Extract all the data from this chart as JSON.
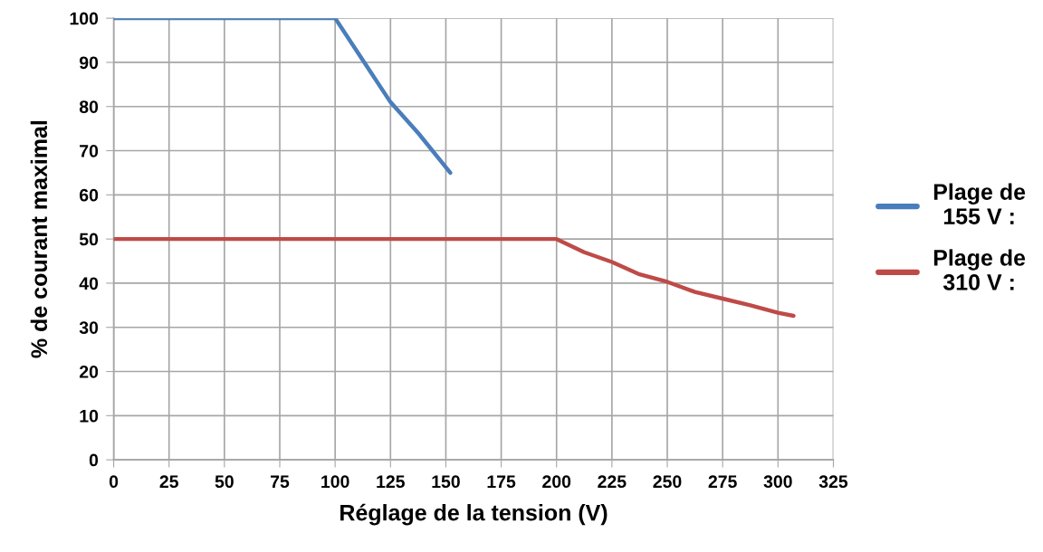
{
  "chart_data": {
    "type": "line",
    "xlabel": "Réglage de la tension (V)",
    "ylabel": "% de courant maximal",
    "series": [
      {
        "name": "Plage de\n155 V :",
        "color": "#4a7ebb",
        "x": [
          0,
          100,
          112.5,
          125,
          137.5,
          152
        ],
        "values": [
          100,
          100,
          90.5,
          81,
          74,
          65
        ]
      },
      {
        "name": "Plage de\n310 V :",
        "color": "#be4b48",
        "x": [
          0,
          200,
          212.5,
          225,
          237.5,
          250,
          262.5,
          275,
          287.5,
          300,
          307
        ],
        "values": [
          50,
          50,
          47,
          44.8,
          42,
          40.3,
          38,
          36.5,
          35,
          33.3,
          32.6
        ]
      }
    ],
    "xlim": [
      0,
      325
    ],
    "xticks": [
      0,
      25,
      50,
      75,
      100,
      125,
      150,
      175,
      200,
      225,
      250,
      275,
      300,
      325
    ],
    "ylim": [
      0,
      100
    ],
    "yticks": [
      0,
      10,
      20,
      30,
      40,
      50,
      60,
      70,
      80,
      90,
      100
    ],
    "grid": true,
    "legend": "right",
    "line_style": "solid"
  }
}
